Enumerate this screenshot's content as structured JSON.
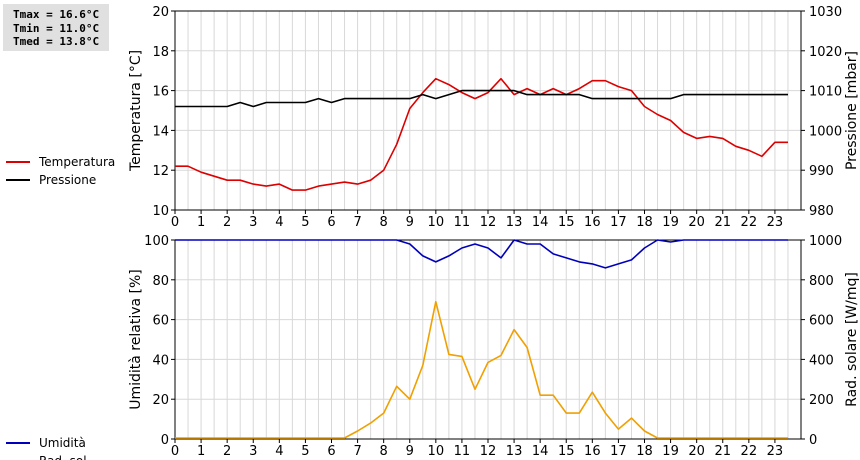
{
  "stats": {
    "tmax": "Tmax = 16.6°C",
    "tmin": "Tmin = 11.0°C",
    "tmed": "Tmed = 13.8°C"
  },
  "chart_data": [
    {
      "type": "line",
      "x_ticks": [
        "0",
        "1",
        "2",
        "3",
        "4",
        "5",
        "6",
        "7",
        "8",
        "9",
        "10",
        "11",
        "12",
        "13",
        "14",
        "15",
        "16",
        "17",
        "18",
        "19",
        "20",
        "21",
        "22",
        "23"
      ],
      "xlim": [
        0,
        24
      ],
      "ylabel": "Temperatura [°C]",
      "ylim": [
        10,
        20
      ],
      "y_ticks": [
        "10",
        "12",
        "14",
        "16",
        "18",
        "20"
      ],
      "y2label": "Pressione [mbar]",
      "y2lim": [
        980,
        1030
      ],
      "y2_ticks": [
        "980",
        "990",
        "1000",
        "1010",
        "1020",
        "1030"
      ],
      "grid": true,
      "legend_position": "left",
      "series": [
        {
          "name": "Temperatura",
          "axis": "left",
          "color": "#dd0000",
          "x": [
            0,
            0.5,
            1,
            1.5,
            2,
            2.5,
            3,
            3.5,
            4,
            4.5,
            5,
            5.5,
            6,
            6.5,
            7,
            7.5,
            8,
            8.5,
            9,
            9.5,
            10,
            10.5,
            11,
            11.5,
            12,
            12.5,
            13,
            13.5,
            14,
            14.5,
            15,
            15.5,
            16,
            16.5,
            17,
            17.5,
            18,
            18.5,
            19,
            19.5,
            20,
            20.5,
            21,
            21.5,
            22,
            22.5,
            23,
            23.5
          ],
          "values": [
            12.2,
            12.2,
            11.9,
            11.7,
            11.5,
            11.5,
            11.3,
            11.2,
            11.3,
            11.0,
            11.0,
            11.2,
            11.3,
            11.4,
            11.3,
            11.5,
            12.0,
            13.3,
            15.1,
            15.9,
            16.6,
            16.3,
            15.9,
            15.6,
            15.9,
            16.6,
            15.8,
            16.1,
            15.8,
            16.1,
            15.8,
            16.1,
            16.5,
            16.5,
            16.2,
            16.0,
            15.2,
            14.8,
            14.5,
            13.9,
            13.6,
            13.7,
            13.6,
            13.2,
            13.0,
            12.7,
            13.4,
            13.4
          ]
        },
        {
          "name": "Pressione",
          "axis": "right",
          "color": "#000000",
          "x": [
            0,
            0.5,
            1,
            1.5,
            2,
            2.5,
            3,
            3.5,
            4,
            4.5,
            5,
            5.5,
            6,
            6.5,
            7,
            7.5,
            8,
            8.5,
            9,
            9.5,
            10,
            10.5,
            11,
            11.5,
            12,
            12.5,
            13,
            13.5,
            14,
            14.5,
            15,
            15.5,
            16,
            16.5,
            17,
            17.5,
            18,
            18.5,
            19,
            19.5,
            20,
            20.5,
            21,
            21.5,
            22,
            22.5,
            23,
            23.5
          ],
          "values": [
            1006,
            1006,
            1006,
            1006,
            1006,
            1007,
            1006,
            1007,
            1007,
            1007,
            1007,
            1008,
            1007,
            1008,
            1008,
            1008,
            1008,
            1008,
            1008,
            1009,
            1008,
            1009,
            1010,
            1010,
            1010,
            1010,
            1010,
            1009,
            1009,
            1009,
            1009,
            1009,
            1008,
            1008,
            1008,
            1008,
            1008,
            1008,
            1008,
            1009,
            1009,
            1009,
            1009,
            1009,
            1009,
            1009,
            1009,
            1009
          ]
        }
      ]
    },
    {
      "type": "line",
      "x_ticks": [
        "0",
        "1",
        "2",
        "3",
        "4",
        "5",
        "6",
        "7",
        "8",
        "9",
        "10",
        "11",
        "12",
        "13",
        "14",
        "15",
        "16",
        "17",
        "18",
        "19",
        "20",
        "21",
        "22",
        "23"
      ],
      "xlim": [
        0,
        24
      ],
      "ylabel": "Umidità relativa [%]",
      "ylim": [
        0,
        100
      ],
      "y_ticks": [
        "0",
        "20",
        "40",
        "60",
        "80",
        "100"
      ],
      "y2label": "Rad. solare [W/mq]",
      "y2lim": [
        0,
        1000
      ],
      "y2_ticks": [
        "0",
        "200",
        "400",
        "600",
        "800",
        "1000"
      ],
      "grid": true,
      "legend_position": "left",
      "series": [
        {
          "name": "Umidità",
          "axis": "left",
          "color": "#0000bb",
          "x": [
            0,
            0.5,
            1,
            1.5,
            2,
            2.5,
            3,
            3.5,
            4,
            4.5,
            5,
            5.5,
            6,
            6.5,
            7,
            7.5,
            8,
            8.5,
            9,
            9.5,
            10,
            10.5,
            11,
            11.5,
            12,
            12.5,
            13,
            13.5,
            14,
            14.5,
            15,
            15.5,
            16,
            16.5,
            17,
            17.5,
            18,
            18.5,
            19,
            19.5,
            20,
            20.5,
            21,
            21.5,
            22,
            22.5,
            23,
            23.5
          ],
          "values": [
            100,
            100,
            100,
            100,
            100,
            100,
            100,
            100,
            100,
            100,
            100,
            100,
            100,
            100,
            100,
            100,
            100,
            100,
            98,
            92,
            89,
            92,
            96,
            98,
            96,
            91,
            100,
            98,
            98,
            93,
            91,
            89,
            88,
            86,
            88,
            90,
            96,
            100,
            99,
            100,
            100,
            100,
            100,
            100,
            100,
            100,
            100,
            100
          ]
        },
        {
          "name": "Rad. sol.",
          "axis": "right",
          "color": "#f0a000",
          "x": [
            0,
            0.5,
            1,
            1.5,
            2,
            2.5,
            3,
            3.5,
            4,
            4.5,
            5,
            5.5,
            6,
            6.5,
            7,
            7.5,
            8,
            8.5,
            9,
            9.5,
            10,
            10.5,
            11,
            11.5,
            12,
            12.5,
            13,
            13.5,
            14,
            14.5,
            15,
            15.5,
            16,
            16.5,
            17,
            17.5,
            18,
            18.5,
            19,
            19.5,
            20,
            20.5,
            21,
            21.5,
            22,
            22.5,
            23,
            23.5
          ],
          "values": [
            5,
            5,
            5,
            5,
            5,
            5,
            5,
            5,
            5,
            5,
            5,
            5,
            5,
            5,
            40,
            80,
            130,
            265,
            200,
            370,
            690,
            425,
            415,
            250,
            385,
            420,
            550,
            460,
            220,
            220,
            130,
            130,
            235,
            130,
            50,
            105,
            40,
            5,
            5,
            5,
            5,
            5,
            5,
            5,
            5,
            5,
            5,
            5
          ]
        }
      ]
    }
  ]
}
